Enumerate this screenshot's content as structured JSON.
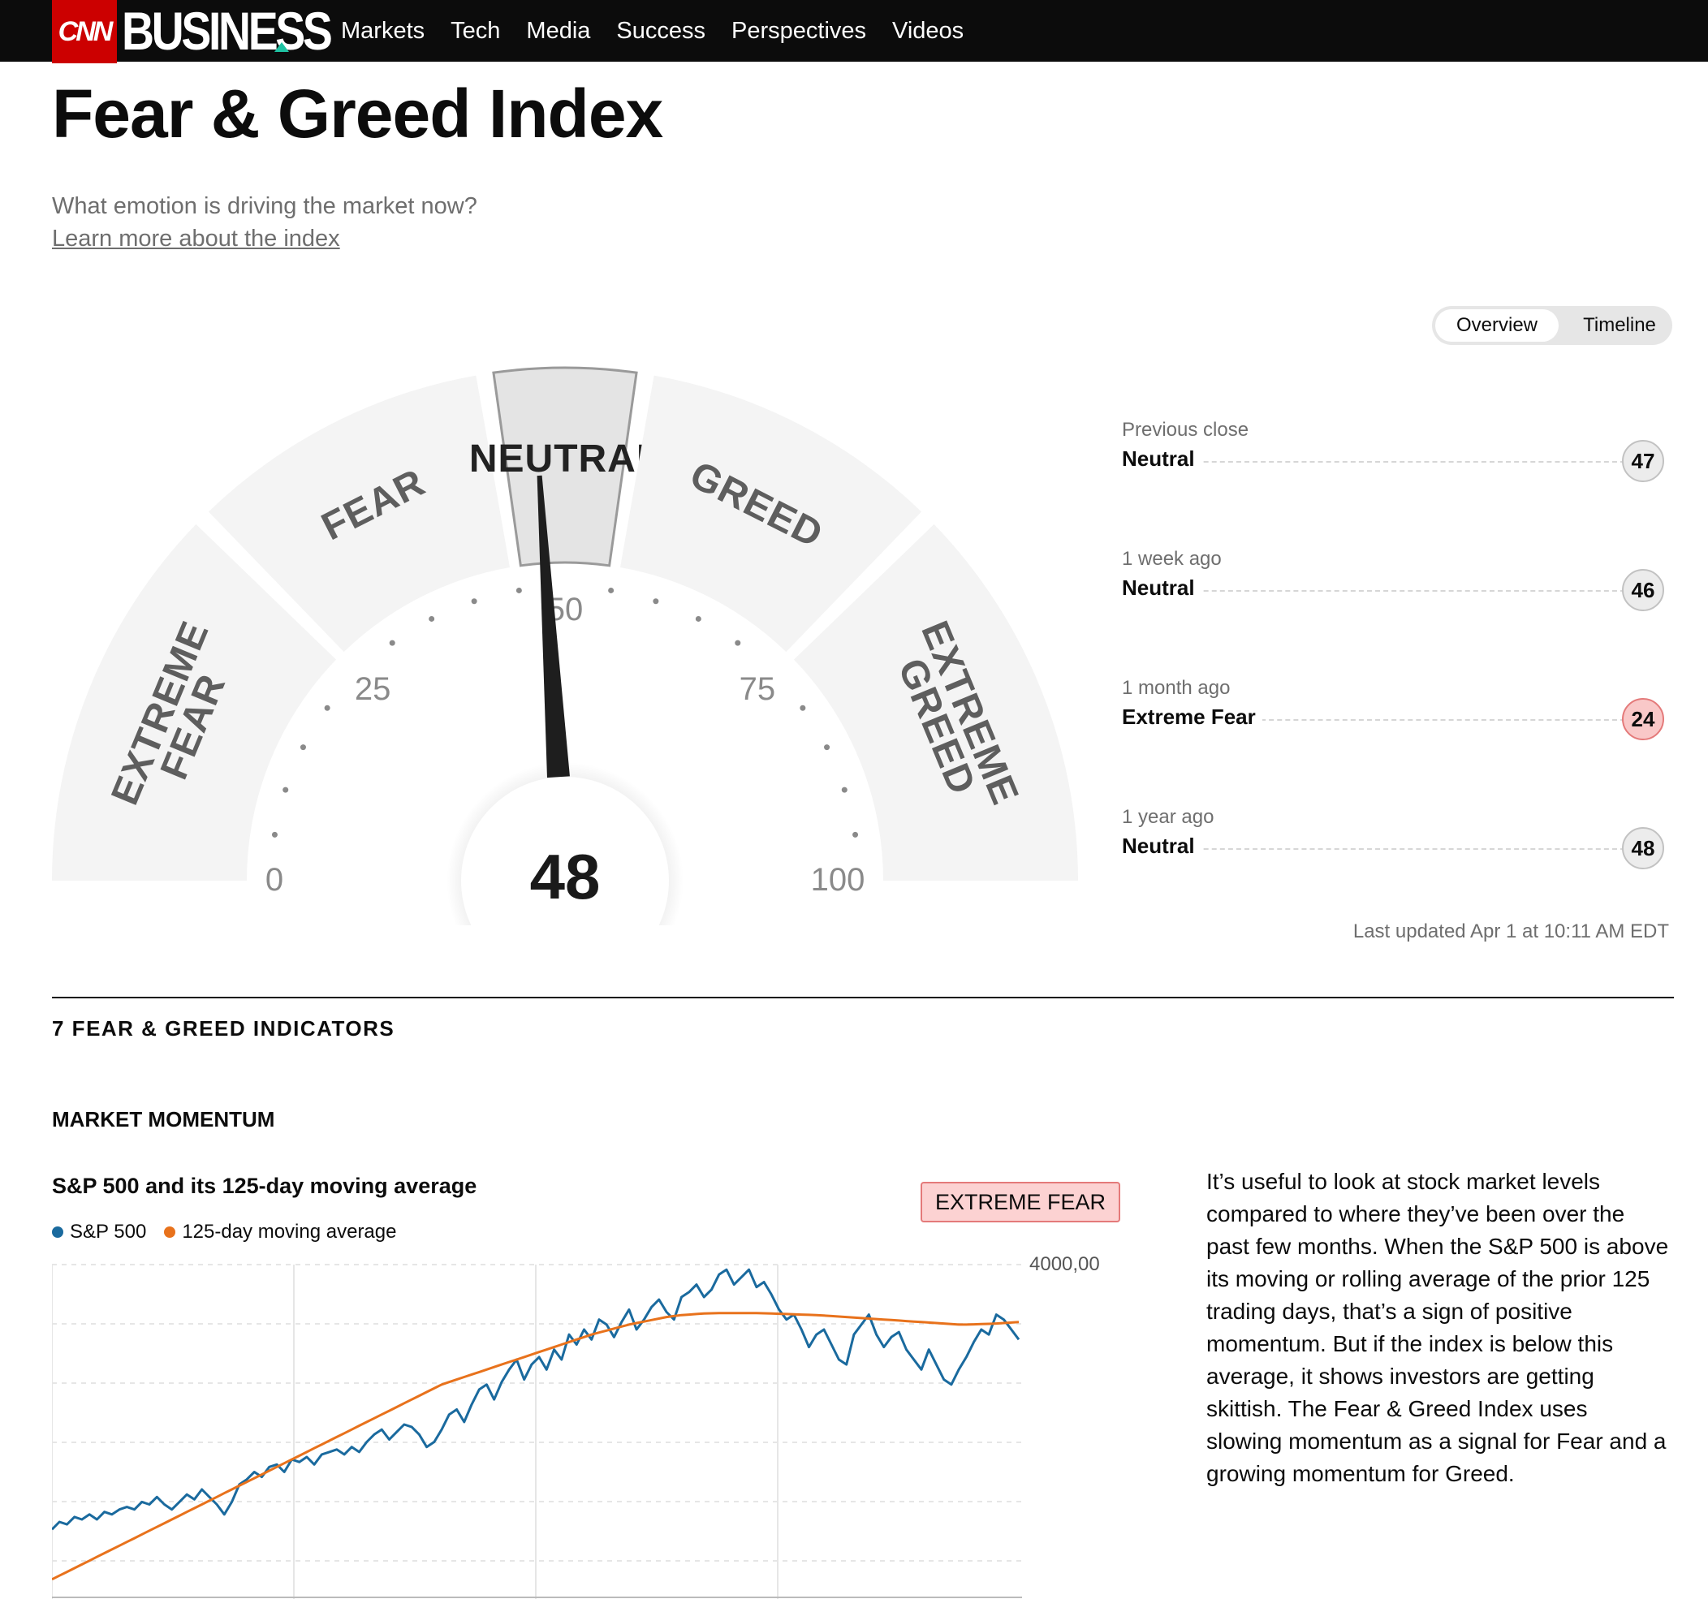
{
  "header": {
    "cnn_logo": "CNN",
    "brand": "BUSINESS",
    "nav": [
      "Markets",
      "Tech",
      "Media",
      "Success",
      "Perspectives",
      "Videos"
    ]
  },
  "page": {
    "title": "Fear & Greed Index",
    "subtitle": "What emotion is driving the market now?",
    "learn_more": "Learn more about the index"
  },
  "toggle": {
    "overview": "Overview",
    "timeline": "Timeline",
    "selected": "Overview"
  },
  "gauge": {
    "value": 48,
    "scale_min": 0,
    "scale_max": 100,
    "ticks": [
      "0",
      "25",
      "50",
      "75",
      "100"
    ],
    "zones": [
      "EXTREME\nFEAR",
      "FEAR",
      "NEUTRAL",
      "GREED",
      "EXTREME\nGREED"
    ],
    "active_zone": "NEUTRAL"
  },
  "history": [
    {
      "label": "Previous close",
      "rating": "Neutral",
      "value": "47"
    },
    {
      "label": "1 week ago",
      "rating": "Neutral",
      "value": "46"
    },
    {
      "label": "1 month ago",
      "rating": "Extreme Fear",
      "value": "24"
    },
    {
      "label": "1 year ago",
      "rating": "Neutral",
      "value": "48"
    }
  ],
  "last_updated": "Last updated Apr 1 at 10:11 AM EDT",
  "indicators_title": "7 FEAR & GREED INDICATORS",
  "indicator": {
    "title": "MARKET MOMENTUM",
    "chart_title": "S&P 500 and its 125-day moving average",
    "rating_badge": "EXTREME FEAR",
    "description": "It’s useful to look at stock market levels compared to where they’ve been over the past few months. When the S&P 500 is above its moving or rolling average of the prior 125 trading days, that’s a sign of positive momentum. But if the index is below this average, it shows investors are getting skittish. The Fear & Greed Index uses slowing momentum as a signal for Fear and a growing momentum for Greed."
  },
  "colors": {
    "sp500": "#1a6a9e",
    "moving_avg": "#e8721c",
    "fear_badge": "#fcd2d2",
    "brand_red": "#cc0000"
  },
  "chart_data": {
    "type": "line",
    "series": [
      {
        "name": "S&P 500",
        "values": [
          4920,
          4950,
          4940,
          4970,
          4960,
          4980,
          4960,
          4990,
          4980,
          5000,
          5010,
          5000,
          5030,
          5020,
          5050,
          5020,
          5000,
          5030,
          5060,
          5040,
          5080,
          5050,
          5020,
          4980,
          5030,
          5100,
          5120,
          5150,
          5130,
          5170,
          5180,
          5150,
          5200,
          5190,
          5210,
          5180,
          5220,
          5230,
          5240,
          5220,
          5250,
          5230,
          5270,
          5300,
          5320,
          5280,
          5310,
          5340,
          5330,
          5300,
          5250,
          5270,
          5320,
          5380,
          5400,
          5350,
          5420,
          5480,
          5500,
          5440,
          5510,
          5560,
          5600,
          5520,
          5580,
          5610,
          5560,
          5640,
          5600,
          5700,
          5660,
          5720,
          5680,
          5760,
          5740,
          5690,
          5750,
          5800,
          5720,
          5760,
          5810,
          5840,
          5790,
          5760,
          5850,
          5870,
          5900,
          5850,
          5880,
          5940,
          5960,
          5900,
          5930,
          5960,
          5890,
          5910,
          5860,
          5800,
          5760,
          5780,
          5720,
          5650,
          5700,
          5720,
          5660,
          5600,
          5580,
          5700,
          5740,
          5780,
          5700,
          5650,
          5690,
          5710,
          5640,
          5600,
          5560,
          5640,
          5580,
          5520,
          5500,
          5560,
          5610,
          5670,
          5720,
          5700,
          5780,
          5760,
          5720,
          5680
        ]
      },
      {
        "name": "125-day moving average",
        "values": [
          4720,
          4735,
          4750,
          4765,
          4780,
          4795,
          4810,
          4825,
          4840,
          4855,
          4870,
          4885,
          4900,
          4915,
          4930,
          4945,
          4960,
          4975,
          4990,
          5005,
          5020,
          5035,
          5050,
          5065,
          5080,
          5095,
          5110,
          5125,
          5140,
          5155,
          5170,
          5185,
          5200,
          5215,
          5230,
          5245,
          5260,
          5275,
          5290,
          5305,
          5320,
          5335,
          5350,
          5365,
          5380,
          5395,
          5410,
          5425,
          5440,
          5455,
          5470,
          5485,
          5500,
          5510,
          5520,
          5530,
          5540,
          5550,
          5560,
          5570,
          5580,
          5590,
          5600,
          5610,
          5620,
          5630,
          5640,
          5650,
          5660,
          5670,
          5680,
          5690,
          5700,
          5708,
          5716,
          5724,
          5732,
          5740,
          5746,
          5752,
          5758,
          5764,
          5770,
          5774,
          5778,
          5780,
          5782,
          5784,
          5785,
          5786,
          5786,
          5786,
          5786,
          5786,
          5786,
          5785,
          5784,
          5783,
          5782,
          5781,
          5780,
          5779,
          5778,
          5776,
          5774,
          5772,
          5770,
          5768,
          5766,
          5764,
          5762,
          5760,
          5758,
          5756,
          5754,
          5752,
          5750,
          5748,
          5746,
          5744,
          5742,
          5740,
          5740,
          5741,
          5742,
          5743,
          5744,
          5746,
          5748,
          5750
        ]
      }
    ],
    "ylabel_visible": "4000,00",
    "grid": true,
    "legend": "top-left"
  }
}
